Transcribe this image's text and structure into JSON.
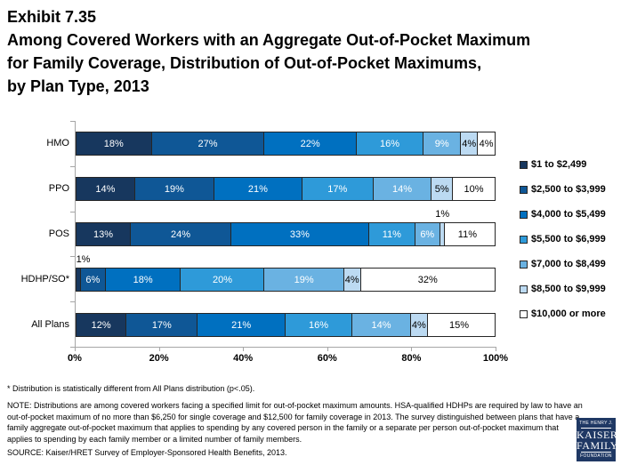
{
  "title": {
    "lines": [
      "Exhibit 7.35",
      "Among Covered Workers with an Aggregate Out-of-Pocket Maximum",
      "for Family Coverage, Distribution of Out-of-Pocket Maximums,",
      "by Plan Type, 2013"
    ]
  },
  "chart_data": {
    "type": "bar",
    "orientation": "horizontal-stacked",
    "title": "Distribution of Out-of-Pocket Maximums for Family Coverage, by Plan Type, 2013",
    "categories": [
      "HMO",
      "PPO",
      "POS",
      "HDHP/SO*",
      "All Plans"
    ],
    "series": [
      {
        "name": "$1 to $2,499",
        "color": "#17375E",
        "values": [
          18,
          14,
          13,
          1,
          12
        ]
      },
      {
        "name": "$2,500 to $3,999",
        "color": "#0F5796",
        "values": [
          27,
          19,
          24,
          6,
          17
        ]
      },
      {
        "name": "$4,000 to $5,499",
        "color": "#0070C0",
        "values": [
          22,
          21,
          33,
          18,
          21
        ]
      },
      {
        "name": "$5,500 to $6,999",
        "color": "#2E9AD9",
        "values": [
          16,
          17,
          11,
          20,
          16
        ]
      },
      {
        "name": "$7,000 to $8,499",
        "color": "#6AB2E2",
        "values": [
          9,
          14,
          6,
          19,
          14
        ]
      },
      {
        "name": "$8,500 to $9,999",
        "color": "#BCDAF2",
        "values": [
          4,
          5,
          1,
          4,
          4
        ]
      },
      {
        "name": "$10,000 or more",
        "color": "#FFFFFF",
        "values": [
          4,
          10,
          11,
          32,
          15
        ]
      }
    ],
    "label_format": "percent",
    "label_color_light_series_start_index": 5,
    "x_axis": {
      "range": [
        0,
        100
      ],
      "ticks": [
        "0%",
        "20%",
        "40%",
        "60%",
        "80%",
        "100%"
      ]
    },
    "legend_position": "right",
    "grid": false
  },
  "footnotes": {
    "star": "* Distribution is statistically different from All Plans distribution (p<.05).",
    "note": "NOTE: Distributions are among covered workers facing a specified limit for out-of-pocket maximum amounts. HSA-qualified HDHPs are required by law to have an out-of-pocket maximum of no more than $6,250 for single coverage and $12,500 for family coverage in 2013.  The survey distinguished between plans that have a family aggregate out-of-pocket maximum that applies to spending by any covered person in the family or a separate per person out-of-pocket maximum that applies to spending by each family member or a limited number of family members.",
    "source": "SOURCE:  Kaiser/HRET Survey of Employer-Sponsored Health Benefits, 2013."
  },
  "logo": {
    "line1": "THE HENRY J.",
    "line2": "KAISER",
    "line3": "FAMILY",
    "line4": "FOUNDATION",
    "background": "#1F3864"
  }
}
